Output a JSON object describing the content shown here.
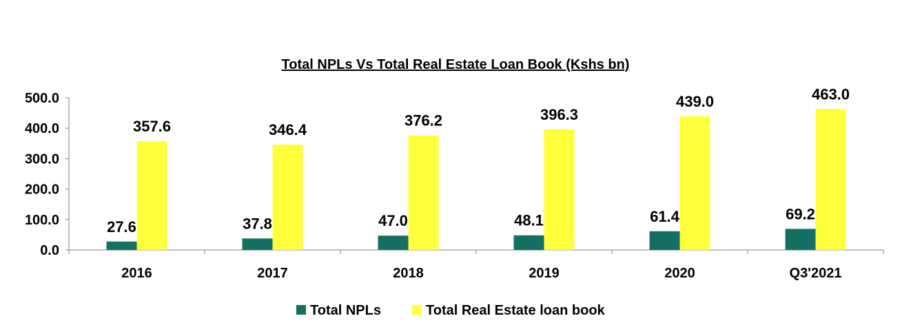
{
  "chart_data": {
    "type": "bar",
    "title": "Total NPLs Vs Total Real Estate Loan Book (Kshs bn)",
    "xlabel": "",
    "ylabel": "",
    "categories": [
      "2016",
      "2017",
      "2018",
      "2019",
      "2020",
      "Q3'2021"
    ],
    "series": [
      {
        "name": "Total NPLs",
        "color": "#147062",
        "values": [
          27.6,
          37.8,
          47.0,
          48.1,
          61.4,
          69.2
        ]
      },
      {
        "name": "Total Real Estate loan book",
        "color": "#FFFF3C",
        "values": [
          357.6,
          346.4,
          376.2,
          396.3,
          439.0,
          463.0
        ]
      }
    ],
    "ylim": [
      0,
      500
    ],
    "yticks": [
      "0.0",
      "100.0",
      "200.0",
      "300.0",
      "400.0",
      "500.0"
    ],
    "data_labels": true,
    "grid": false,
    "legend_position": "bottom"
  }
}
